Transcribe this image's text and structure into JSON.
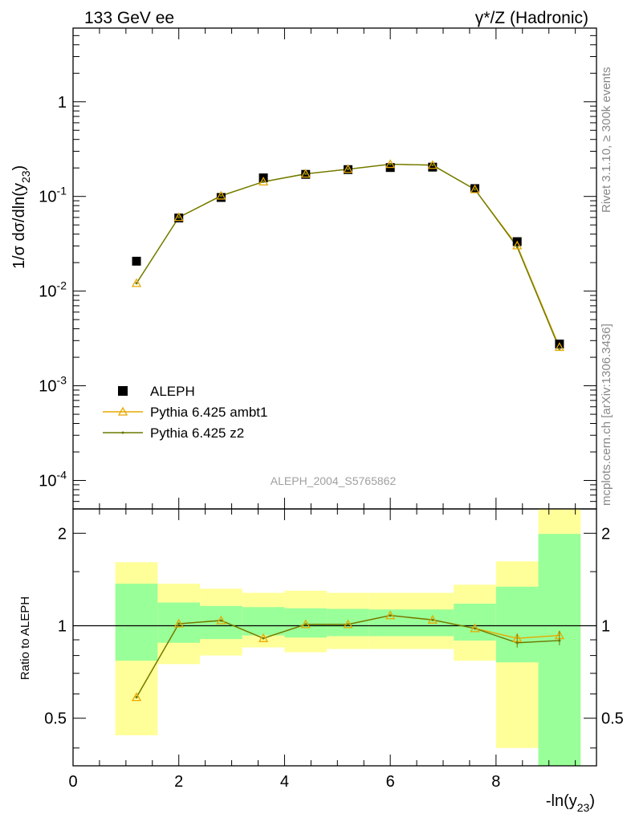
{
  "header": {
    "left": "133 GeV ee",
    "right": "γ*/Z (Hadronic)"
  },
  "side_labels": {
    "rivet": "Rivet 3.1.10, ≥ 300k events",
    "mcplots": "mcplots.cern.ch [arXiv:1306.3436]"
  },
  "watermark": "ALEPH_2004_S5765862",
  "colors": {
    "data": "#000000",
    "ambt1": "#e8a800",
    "z2": "#6b7a00",
    "band_inner": "#99ff99",
    "band_outer": "#ffff99"
  },
  "chart_data": [
    {
      "type": "scatter",
      "panel": "main",
      "ylabel": "1/σ dσ/dln(y23)",
      "yscale": "log",
      "ylim": [
        5e-05,
        6
      ],
      "xlim": [
        0,
        9.9
      ],
      "x": [
        1.2,
        2.0,
        2.8,
        3.6,
        4.4,
        5.2,
        6.0,
        6.8,
        7.6,
        8.4,
        9.2
      ],
      "series": [
        {
          "name": "ALEPH",
          "style": "square",
          "values": [
            0.0207,
            0.0592,
            0.0975,
            0.157,
            0.171,
            0.192,
            0.202,
            0.204,
            0.121,
            0.0333,
            0.00276
          ]
        },
        {
          "name": "Pythia 6.425 ambt1",
          "style": "triangle-line",
          "values": [
            0.0121,
            0.0601,
            0.1015,
            0.143,
            0.173,
            0.194,
            0.219,
            0.214,
            0.1185,
            0.0302,
            0.00256
          ]
        },
        {
          "name": "Pythia 6.425 z2",
          "style": "line",
          "values": [
            0.0121,
            0.0601,
            0.1015,
            0.143,
            0.173,
            0.194,
            0.219,
            0.214,
            0.1185,
            0.0293,
            0.00246
          ]
        }
      ],
      "legend": "lower-left",
      "y_ticks": [
        "1",
        "10^-1",
        "10^-2",
        "10^-3",
        "10^-4"
      ]
    },
    {
      "type": "line",
      "panel": "ratio",
      "ylabel": "Ratio to ALEPH",
      "xlabel": "-ln(y23)",
      "yscale": "log",
      "ylim": [
        0.35,
        2.4
      ],
      "xlim": [
        0,
        9.9
      ],
      "x": [
        1.2,
        2.0,
        2.8,
        3.6,
        4.4,
        5.2,
        6.0,
        6.8,
        7.6,
        8.4,
        9.2
      ],
      "x_edges": [
        0.8,
        1.6,
        2.4,
        3.2,
        4.0,
        4.8,
        5.6,
        6.4,
        7.2,
        8.0,
        8.8,
        9.6
      ],
      "x_ticks": [
        "0",
        "2",
        "4",
        "6",
        "8"
      ],
      "y_ticks": [
        "0.5",
        "1",
        "2"
      ],
      "bands": {
        "inner_low": [
          0.77,
          0.88,
          0.905,
          0.93,
          0.915,
          0.925,
          0.925,
          0.925,
          0.895,
          0.76,
          0.33
        ],
        "inner_high": [
          1.37,
          1.19,
          1.16,
          1.15,
          1.14,
          1.135,
          1.13,
          1.13,
          1.18,
          1.34,
          1.99
        ],
        "outer_low": [
          0.44,
          0.75,
          0.8,
          0.85,
          0.82,
          0.84,
          0.84,
          0.84,
          0.77,
          0.4,
          0.33
        ],
        "outer_high": [
          1.61,
          1.37,
          1.32,
          1.28,
          1.3,
          1.28,
          1.28,
          1.28,
          1.36,
          1.62,
          2.4
        ]
      },
      "series": [
        {
          "name": "Pythia 6.425 ambt1",
          "values": [
            0.585,
            1.015,
            1.04,
            0.91,
            1.01,
            1.01,
            1.08,
            1.045,
            0.98,
            0.91,
            0.93
          ]
        },
        {
          "name": "Pythia 6.425 z2",
          "values": [
            0.585,
            1.015,
            1.04,
            0.91,
            1.01,
            1.01,
            1.08,
            1.045,
            0.98,
            0.88,
            0.895
          ]
        }
      ]
    }
  ]
}
